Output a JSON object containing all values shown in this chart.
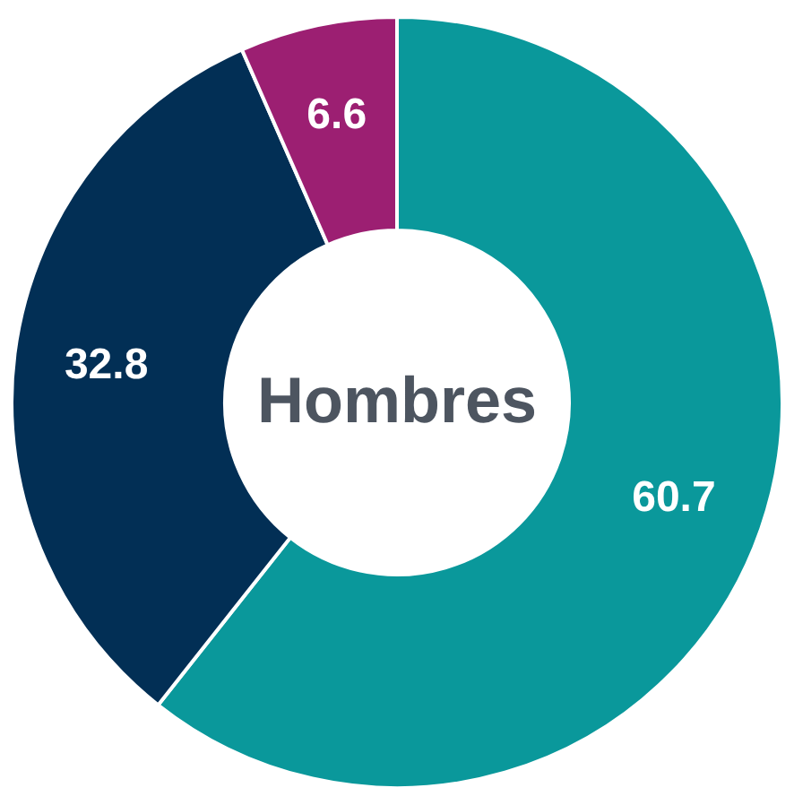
{
  "chart_data": {
    "type": "donut",
    "title": "Hombres",
    "categories": [
      null,
      null,
      null
    ],
    "values": [
      60.7,
      32.8,
      6.6
    ],
    "colors": [
      "#0a989b",
      "#022f55",
      "#9c1f72"
    ],
    "data_labels": true
  }
}
